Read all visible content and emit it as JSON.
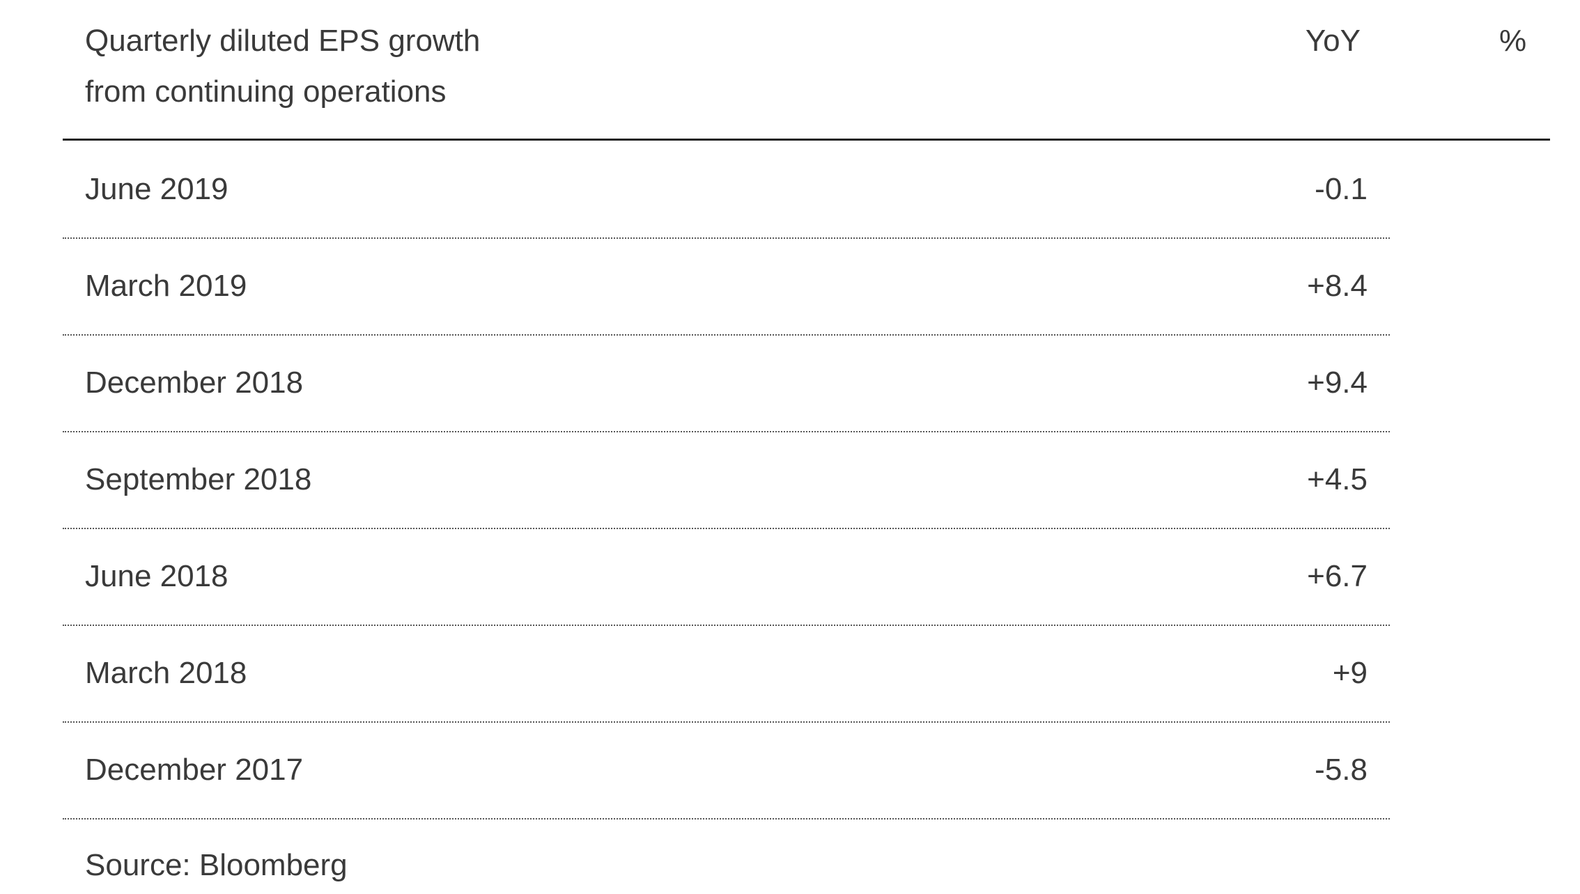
{
  "table": {
    "header": {
      "title_line1": "Quarterly diluted EPS growth",
      "title_line2": "from continuing operations",
      "col_yoy": "YoY",
      "col_unit": "%"
    },
    "rows": [
      {
        "period": "June 2019",
        "value": "-0.1"
      },
      {
        "period": "March 2019",
        "value": "+8.4"
      },
      {
        "period": "December 2018",
        "value": "+9.4"
      },
      {
        "period": "September 2018",
        "value": "+4.5"
      },
      {
        "period": "June 2018",
        "value": "+6.7"
      },
      {
        "period": "March 2018",
        "value": "+9"
      },
      {
        "period": "December 2017",
        "value": "-5.8"
      }
    ],
    "source": "Source: Bloomberg"
  }
}
